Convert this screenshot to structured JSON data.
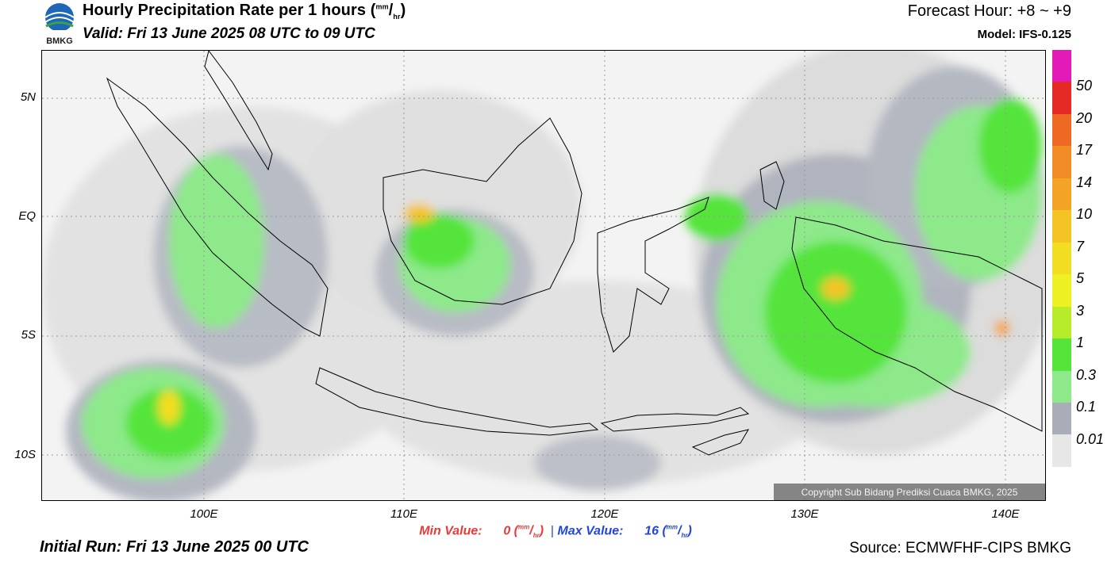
{
  "header": {
    "title": "Hourly Precipitation Rate per 1 hours",
    "title_unit_num": "mm",
    "title_unit_den": "hr",
    "valid": "Valid: Fri 13 June 2025 08 UTC to 09 UTC",
    "forecast_hour": "Forecast Hour: +8 ~ +9",
    "model": "Model: IFS-0.125",
    "logo_text": "BMKG"
  },
  "axes": {
    "lat_labels": [
      "5N",
      "EQ",
      "5S",
      "10S"
    ],
    "lon_labels": [
      "100E",
      "110E",
      "120E",
      "130E",
      "140E"
    ]
  },
  "colorbar": {
    "labels": [
      "50",
      "20",
      "17",
      "14",
      "10",
      "7",
      "5",
      "3",
      "1",
      "0.3",
      "0.1",
      "0.01"
    ],
    "colors": [
      "#e31ab8",
      "#e52a26",
      "#ee6a24",
      "#f28c26",
      "#f3a426",
      "#f4c425",
      "#f3dd22",
      "#edf022",
      "#b7ec2b",
      "#55e43a",
      "#8de98a",
      "#a9adb7",
      "#e7e7e7"
    ]
  },
  "stats": {
    "min_label": "Min Value:",
    "min_value": "0",
    "max_label": "Max Value:",
    "max_value": "16",
    "unit_num": "mm",
    "unit_den": "hr",
    "separator": "|"
  },
  "footer": {
    "initial_run": "Initial Run: Fri 13 June 2025 00 UTC",
    "source": "Source: ECMWFHF-CIPS BMKG",
    "copyright": "Copyright Sub Bidang Prediksi Cuaca BMKG, 2025"
  }
}
